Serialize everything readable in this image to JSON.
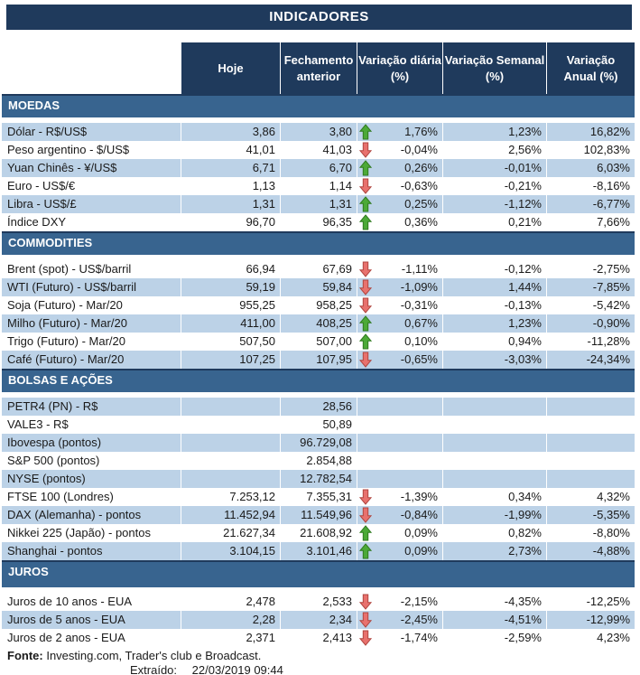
{
  "title": "INDICADORES",
  "columns": [
    "Hoje",
    "Fechamento\nanterior",
    "Variação diária\n(%)",
    "Variação Semanal\n(%)",
    "Variação\nAnual (%)"
  ],
  "sections": [
    {
      "name": "MOEDAS",
      "rows": [
        {
          "label": "Dólar - R$/US$",
          "hoje": "3,86",
          "fechamento": "3,80",
          "arrow": "up",
          "var_diaria": "1,76%",
          "var_semanal": "1,23%",
          "var_anual": "16,82%"
        },
        {
          "label": "Peso argentino - $/US$",
          "hoje": "41,01",
          "fechamento": "41,03",
          "arrow": "down",
          "var_diaria": "-0,04%",
          "var_semanal": "2,56%",
          "var_anual": "102,83%"
        },
        {
          "label": "Yuan Chinês - ¥/US$",
          "hoje": "6,71",
          "fechamento": "6,70",
          "arrow": "up",
          "var_diaria": "0,26%",
          "var_semanal": "-0,01%",
          "var_anual": "6,03%"
        },
        {
          "label": "Euro - US$/€",
          "hoje": "1,13",
          "fechamento": "1,14",
          "arrow": "down",
          "var_diaria": "-0,63%",
          "var_semanal": "-0,21%",
          "var_anual": "-8,16%"
        },
        {
          "label": "Libra - US$/£",
          "hoje": "1,31",
          "fechamento": "1,31",
          "arrow": "up",
          "var_diaria": "0,25%",
          "var_semanal": "-1,12%",
          "var_anual": "-6,77%"
        },
        {
          "label": "Índice DXY",
          "hoje": "96,70",
          "fechamento": "96,35",
          "arrow": "up",
          "var_diaria": "0,36%",
          "var_semanal": "0,21%",
          "var_anual": "7,66%"
        }
      ]
    },
    {
      "name": "COMMODITIES",
      "rows": [
        {
          "label": "Brent (spot) - US$/barril",
          "hoje": "66,94",
          "fechamento": "67,69",
          "arrow": "down",
          "var_diaria": "-1,11%",
          "var_semanal": "-0,12%",
          "var_anual": "-2,75%"
        },
        {
          "label": "WTI (Futuro) - US$/barril",
          "hoje": "59,19",
          "fechamento": "59,84",
          "arrow": "down",
          "var_diaria": "-1,09%",
          "var_semanal": "1,44%",
          "var_anual": "-7,85%"
        },
        {
          "label": "Soja (Futuro) - Mar/20",
          "hoje": "955,25",
          "fechamento": "958,25",
          "arrow": "down",
          "var_diaria": "-0,31%",
          "var_semanal": "-0,13%",
          "var_anual": "-5,42%"
        },
        {
          "label": "Milho (Futuro) - Mar/20",
          "hoje": "411,00",
          "fechamento": "408,25",
          "arrow": "up",
          "var_diaria": "0,67%",
          "var_semanal": "1,23%",
          "var_anual": "-0,90%"
        },
        {
          "label": "Trigo (Futuro) - Mar/20",
          "hoje": "507,50",
          "fechamento": "507,00",
          "arrow": "up",
          "var_diaria": "0,10%",
          "var_semanal": "0,94%",
          "var_anual": "-11,28%"
        },
        {
          "label": "Café (Futuro) - Mar/20",
          "hoje": "107,25",
          "fechamento": "107,95",
          "arrow": "down",
          "var_diaria": "-0,65%",
          "var_semanal": "-3,03%",
          "var_anual": "-24,34%"
        }
      ]
    },
    {
      "name": "BOLSAS E AÇÕES",
      "rows": [
        {
          "label": "PETR4 (PN) - R$",
          "hoje": "",
          "fechamento": "28,56",
          "arrow": "",
          "var_diaria": "",
          "var_semanal": "",
          "var_anual": ""
        },
        {
          "label": "VALE3 - R$",
          "hoje": "",
          "fechamento": "50,89",
          "arrow": "",
          "var_diaria": "",
          "var_semanal": "",
          "var_anual": ""
        },
        {
          "label": "Ibovespa (pontos)",
          "hoje": "",
          "fechamento": "96.729,08",
          "arrow": "",
          "var_diaria": "",
          "var_semanal": "",
          "var_anual": ""
        },
        {
          "label": "S&P 500 (pontos)",
          "hoje": "",
          "fechamento": "2.854,88",
          "arrow": "",
          "var_diaria": "",
          "var_semanal": "",
          "var_anual": ""
        },
        {
          "label": "NYSE (pontos)",
          "hoje": "",
          "fechamento": "12.782,54",
          "arrow": "",
          "var_diaria": "",
          "var_semanal": "",
          "var_anual": ""
        },
        {
          "label": "FTSE 100 (Londres)",
          "hoje": "7.253,12",
          "fechamento": "7.355,31",
          "arrow": "down",
          "var_diaria": "-1,39%",
          "var_semanal": "0,34%",
          "var_anual": "4,32%"
        },
        {
          "label": "DAX (Alemanha) - pontos",
          "hoje": "11.452,94",
          "fechamento": "11.549,96",
          "arrow": "down",
          "var_diaria": "-0,84%",
          "var_semanal": "-1,99%",
          "var_anual": "-5,35%"
        },
        {
          "label": "Nikkei 225 (Japão) - pontos",
          "hoje": "21.627,34",
          "fechamento": "21.608,92",
          "arrow": "up",
          "var_diaria": "0,09%",
          "var_semanal": "0,82%",
          "var_anual": "-8,80%"
        },
        {
          "label": "Shanghai - pontos",
          "hoje": "3.104,15",
          "fechamento": "3.101,46",
          "arrow": "up",
          "var_diaria": "0,09%",
          "var_semanal": "2,73%",
          "var_anual": "-4,88%"
        }
      ]
    },
    {
      "name": "JUROS",
      "rows": [
        {
          "label": "Juros de 10 anos - EUA",
          "hoje": "2,478",
          "fechamento": "2,533",
          "arrow": "down",
          "var_diaria": "-2,15%",
          "var_semanal": "-4,35%",
          "var_anual": "-12,25%"
        },
        {
          "label": "Juros de 5 anos - EUA",
          "hoje": "2,28",
          "fechamento": "2,34",
          "arrow": "down",
          "var_diaria": "-2,45%",
          "var_semanal": "-4,51%",
          "var_anual": "-12,99%"
        },
        {
          "label": "Juros de 2 anos - EUA",
          "hoje": "2,371",
          "fechamento": "2,413",
          "arrow": "down",
          "var_diaria": "-1,74%",
          "var_semanal": "-2,59%",
          "var_anual": "4,23%"
        }
      ]
    }
  ],
  "footer": {
    "fonte_label": "Fonte:",
    "fonte_text": "Investing.com, Trader's club e Broadcast.",
    "extraido_label": "Extraído:",
    "extraido_value": "22/03/2019 09:44"
  },
  "colors": {
    "navy": "#1F3A5C",
    "steel_blue": "#38648F",
    "row_stripe": "#BCD2E7",
    "arrow_up_green": "#4CA937",
    "arrow_up_border": "#2F7A1F",
    "arrow_down_red": "#E8716D",
    "arrow_down_border": "#B0453F"
  }
}
